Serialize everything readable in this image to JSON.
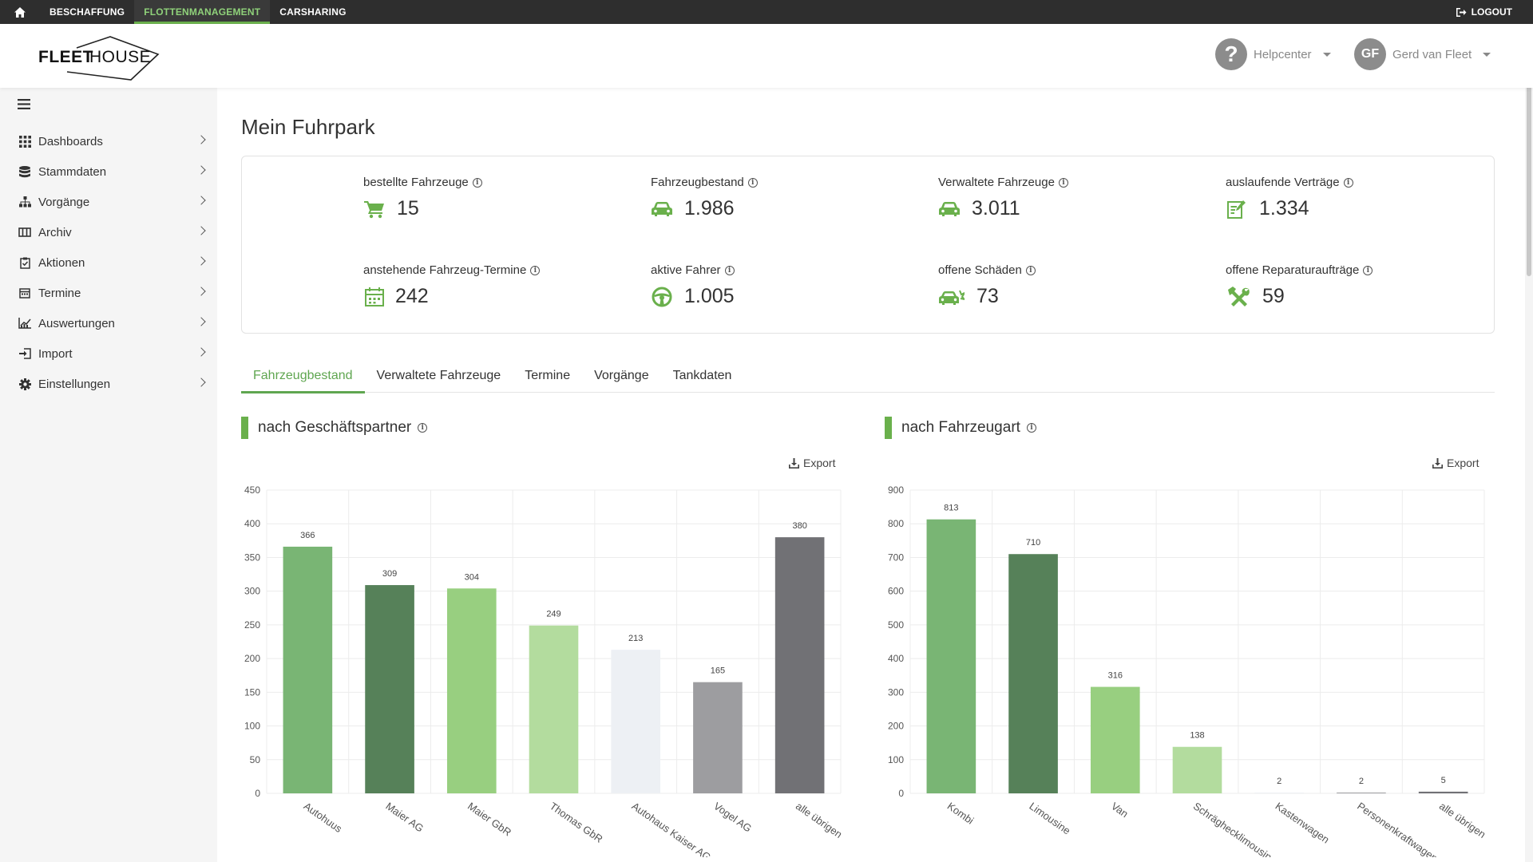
{
  "topnav": {
    "items": [
      {
        "label": "BESCHAFFUNG",
        "active": false
      },
      {
        "label": "FLOTTENMANAGEMENT",
        "active": true
      },
      {
        "label": "CARSHARING",
        "active": false
      }
    ],
    "logout": "LOGOUT"
  },
  "header": {
    "logo": {
      "part1": "FLEET",
      "part2": "HOUSE"
    },
    "help": "Helpcenter",
    "user": {
      "initials": "GF",
      "name": "Gerd van Fleet"
    }
  },
  "sidebar": {
    "items": [
      {
        "label": "Dashboards",
        "icon": "grid-icon"
      },
      {
        "label": "Stammdaten",
        "icon": "database-icon"
      },
      {
        "label": "Vorgänge",
        "icon": "sitemap-icon"
      },
      {
        "label": "Archiv",
        "icon": "archive-icon"
      },
      {
        "label": "Aktionen",
        "icon": "clipboard-check-icon"
      },
      {
        "label": "Termine",
        "icon": "calendar-icon"
      },
      {
        "label": "Auswertungen",
        "icon": "chart-line-icon"
      },
      {
        "label": "Import",
        "icon": "import-icon"
      },
      {
        "label": "Einstellungen",
        "icon": "gear-icon"
      }
    ]
  },
  "page": {
    "title": "Mein Fuhrpark"
  },
  "kpis": [
    {
      "label": "bestellte Fahrzeuge",
      "value": "15",
      "icon": "cart-icon"
    },
    {
      "label": "Fahrzeugbestand",
      "value": "1.986",
      "icon": "car-icon"
    },
    {
      "label": "Verwaltete Fahrzeuge",
      "value": "3.011",
      "icon": "car-icon"
    },
    {
      "label": "auslaufende Verträge",
      "value": "1.334",
      "icon": "contract-icon"
    },
    {
      "label": "anstehende Fahrzeug-Termine",
      "value": "242",
      "icon": "calendar-icon"
    },
    {
      "label": "aktive Fahrer",
      "value": "1.005",
      "icon": "steering-wheel-icon"
    },
    {
      "label": "offene Schäden",
      "value": "73",
      "icon": "car-crash-icon"
    },
    {
      "label": "offene Reparaturaufträge",
      "value": "59",
      "icon": "tools-icon"
    }
  ],
  "tabs": [
    {
      "label": "Fahrzeugbestand",
      "active": true
    },
    {
      "label": "Verwaltete Fahrzeuge",
      "active": false
    },
    {
      "label": "Termine",
      "active": false
    },
    {
      "label": "Vorgänge",
      "active": false
    },
    {
      "label": "Tankdaten",
      "active": false
    }
  ],
  "export_label": "Export",
  "colors": {
    "green_dark": "#568159",
    "green": "#79b574",
    "green_light": "#98cf80",
    "green_pale": "#b3dc9e",
    "gray_pale": "#edf0f4",
    "gray": "#9d9da0",
    "gray_dark": "#717175",
    "accent": "#6ab04c"
  },
  "chart_data": [
    {
      "type": "bar",
      "title": "nach Geschäftspartner",
      "categories": [
        "Autohuus",
        "Maier AG",
        "Maier GbR",
        "Thomas GbR",
        "Autohaus Kaiser AG",
        "Vogel AG",
        "alle übrigen"
      ],
      "values": [
        366,
        309,
        304,
        249,
        213,
        165,
        380
      ],
      "bar_colors": [
        "#79b574",
        "#568159",
        "#98cf80",
        "#b3dc9e",
        "#edf0f4",
        "#9d9da0",
        "#717175"
      ],
      "ylim": [
        0,
        450
      ],
      "yticks": [
        0,
        50,
        100,
        150,
        200,
        250,
        300,
        350,
        400,
        450
      ],
      "grid": true,
      "xlabel": "",
      "ylabel": ""
    },
    {
      "type": "bar",
      "title": "nach Fahrzeugart",
      "categories": [
        "Kombi",
        "Limousine",
        "Van",
        "Schräghecklimousine",
        "Kastenwagen",
        "Personenkraftwagen",
        "alle übrigen"
      ],
      "values": [
        813,
        710,
        316,
        138,
        2,
        2,
        5
      ],
      "bar_colors": [
        "#79b574",
        "#568159",
        "#98cf80",
        "#b3dc9e",
        "#edf0f4",
        "#9d9da0",
        "#717175"
      ],
      "ylim": [
        0,
        900
      ],
      "yticks": [
        0,
        100,
        200,
        300,
        400,
        500,
        600,
        700,
        800,
        900
      ],
      "grid": true,
      "xlabel": "",
      "ylabel": ""
    }
  ]
}
